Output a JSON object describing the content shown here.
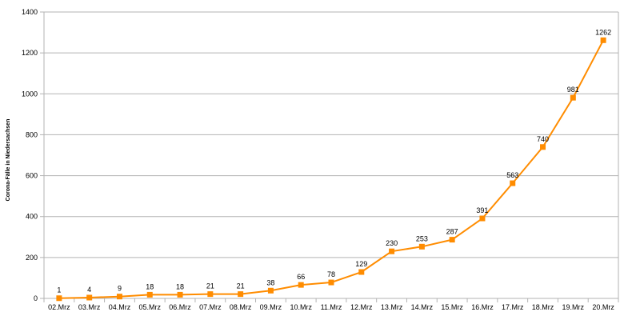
{
  "chart_data": {
    "type": "line",
    "title": "",
    "xlabel": "",
    "ylabel": "Corona-Fälle in Niedersachsen",
    "categories": [
      "02.Mrz",
      "03.Mrz",
      "04.Mrz",
      "05.Mrz",
      "06.Mrz",
      "07.Mrz",
      "08.Mrz",
      "09.Mrz",
      "10.Mrz",
      "11.Mrz",
      "12.Mrz",
      "13.Mrz",
      "14.Mrz",
      "15.Mrz",
      "16.Mrz",
      "17.Mrz",
      "18.Mrz",
      "19.Mrz",
      "20.Mrz"
    ],
    "series": [
      {
        "values": [
          1,
          4,
          9,
          18,
          18,
          21,
          21,
          38,
          66,
          78,
          129,
          230,
          253,
          287,
          391,
          563,
          740,
          981,
          1262
        ],
        "color": "#ff8c00",
        "marker": "square",
        "data_labels": true
      }
    ],
    "ylim": [
      0,
      1400
    ],
    "yticks": [
      0,
      200,
      400,
      600,
      800,
      1000,
      1200,
      1400
    ],
    "grid": true,
    "legend": "none"
  }
}
